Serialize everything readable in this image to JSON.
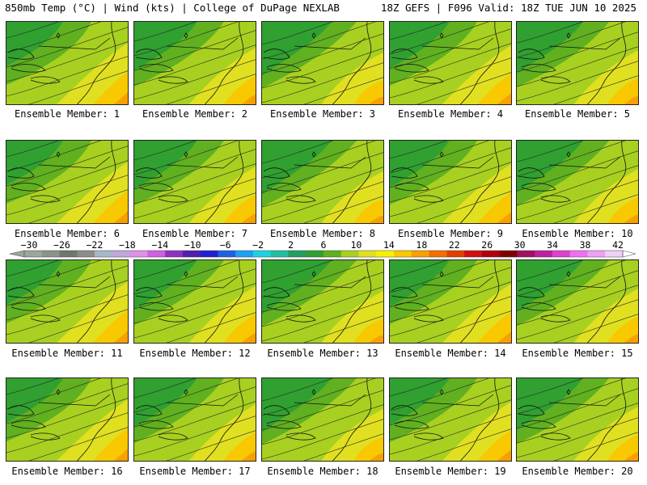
{
  "header": {
    "left": "850mb Temp (°C) | Wind (kts) | College of DuPage NEXLAB",
    "right": "18Z GEFS | F096 Valid: 18Z TUE JUN 10 2025"
  },
  "panels": [
    {
      "label": "Ensemble Member: 1"
    },
    {
      "label": "Ensemble Member: 2"
    },
    {
      "label": "Ensemble Member: 3"
    },
    {
      "label": "Ensemble Member: 4"
    },
    {
      "label": "Ensemble Member: 5"
    },
    {
      "label": "Ensemble Member: 6"
    },
    {
      "label": "Ensemble Member: 7"
    },
    {
      "label": "Ensemble Member: 8"
    },
    {
      "label": "Ensemble Member: 9"
    },
    {
      "label": "Ensemble Member: 10"
    },
    {
      "label": "Ensemble Member: 11"
    },
    {
      "label": "Ensemble Member: 12"
    },
    {
      "label": "Ensemble Member: 13"
    },
    {
      "label": "Ensemble Member: 14"
    },
    {
      "label": "Ensemble Member: 15"
    },
    {
      "label": "Ensemble Member: 16"
    },
    {
      "label": "Ensemble Member: 17"
    },
    {
      "label": "Ensemble Member: 18"
    },
    {
      "label": "Ensemble Member: 19"
    },
    {
      "label": "Ensemble Member: 20"
    }
  ],
  "colorbar": {
    "ticks": [
      "-30",
      "-26",
      "-22",
      "-18",
      "-14",
      "-10",
      "-6",
      "-2",
      "2",
      "6",
      "10",
      "14",
      "18",
      "22",
      "26",
      "30",
      "34",
      "38",
      "42"
    ],
    "colors": [
      "#9aa89a",
      "#8a948a",
      "#6e786e",
      "#8c8c8c",
      "#a8b8c8",
      "#c0a8d8",
      "#e090e8",
      "#d060e0",
      "#9030c0",
      "#5020b0",
      "#2020d0",
      "#2060e0",
      "#20a0f0",
      "#20d0e0",
      "#20c0a0",
      "#20a060",
      "#30a030",
      "#60b020",
      "#a8d020",
      "#e0e020",
      "#f8f000",
      "#f8c800",
      "#f8a000",
      "#f07000",
      "#e04000",
      "#d01010",
      "#b00010",
      "#800000",
      "#a01060",
      "#c020a0",
      "#e040d0",
      "#f070f0",
      "#f0a0f0",
      "#f0d0f8"
    ]
  }
}
